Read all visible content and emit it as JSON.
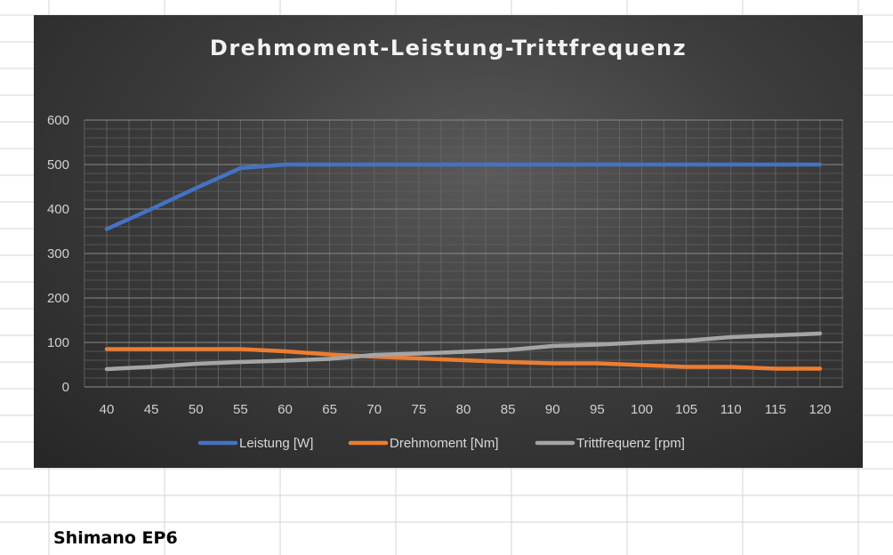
{
  "sheet": {
    "cell_label": "Shimano EP6",
    "colors": {
      "grid": "#d4d4d4"
    }
  },
  "chart_data": {
    "type": "line",
    "title": "Drehmoment-Leistung-Trittfrequenz",
    "x": [
      40,
      45,
      50,
      55,
      60,
      65,
      70,
      75,
      80,
      85,
      90,
      95,
      100,
      105,
      110,
      115,
      120
    ],
    "x_tick_labels": [
      "40",
      "45",
      "50",
      "55",
      "60",
      "65",
      "70",
      "75",
      "80",
      "85",
      "90",
      "95",
      "100",
      "105",
      "110",
      "115",
      "120"
    ],
    "y_ticks": [
      0,
      100,
      200,
      300,
      400,
      500,
      600
    ],
    "ylim": [
      0,
      600
    ],
    "grid": true,
    "legend_position": "bottom",
    "series": [
      {
        "name": "Leistung [W]",
        "color": "#4472c4",
        "values": [
          355,
          400,
          447,
          492,
          500,
          500,
          500,
          500,
          500,
          500,
          500,
          500,
          500,
          500,
          500,
          500,
          500
        ]
      },
      {
        "name": "Drehmoment [Nm]",
        "color": "#ed7d31",
        "values": [
          85,
          85,
          85,
          85,
          80,
          73,
          68,
          64,
          60,
          56,
          53,
          53,
          49,
          45,
          45,
          41,
          41
        ]
      },
      {
        "name": "Trittfrequenz [rpm]",
        "color": "#a5a5a5",
        "values": [
          40,
          45,
          52,
          56,
          59,
          63,
          72,
          75,
          79,
          83,
          92,
          95,
          100,
          104,
          112,
          116,
          120
        ]
      }
    ]
  }
}
